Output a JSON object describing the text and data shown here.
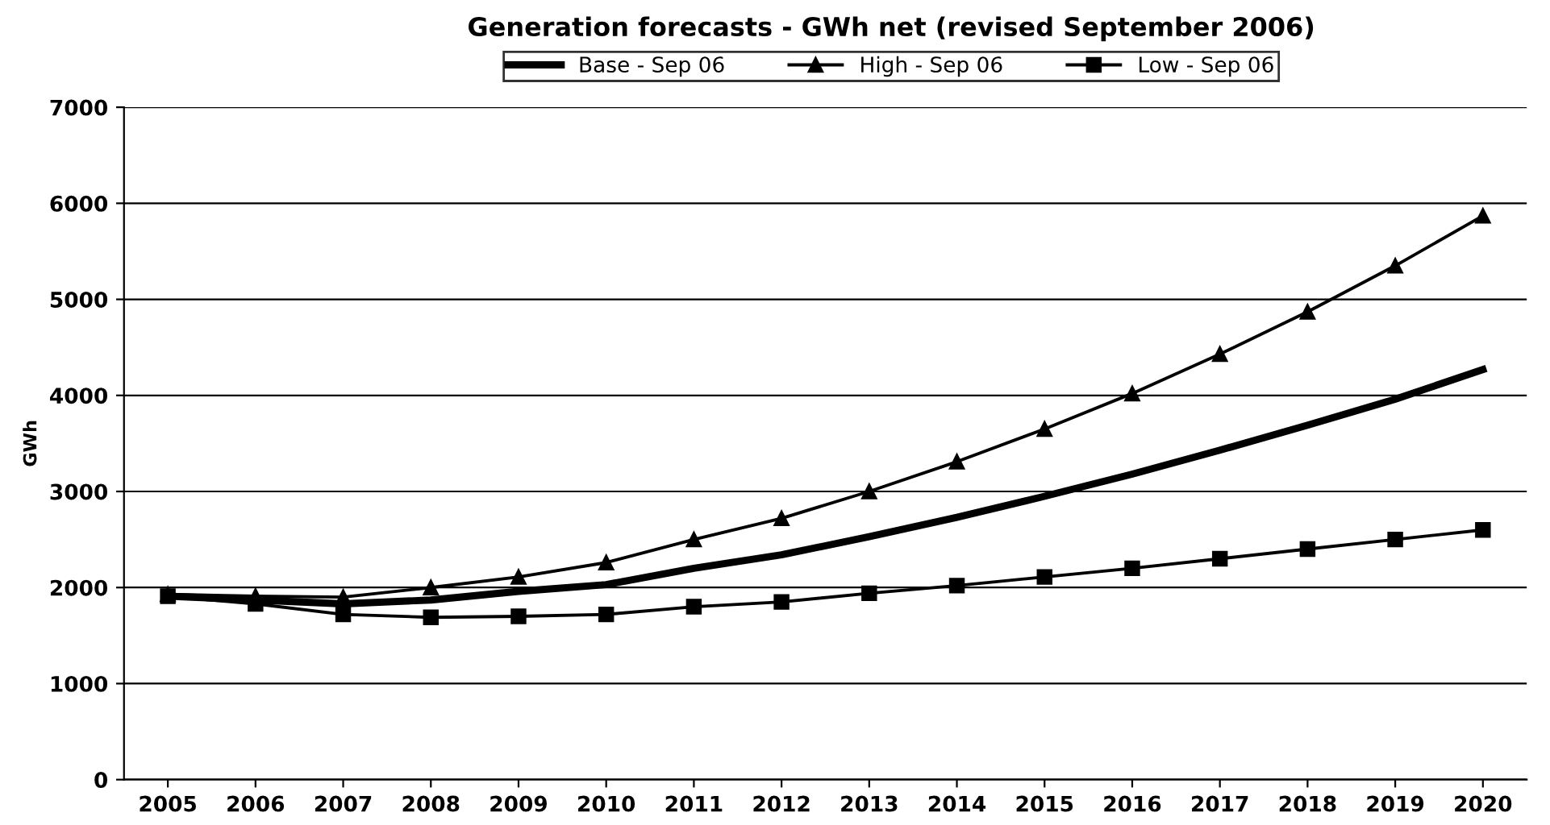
{
  "chart_data": {
    "type": "line",
    "title": "Generation forecasts - GWh net (revised September 2006)",
    "ylabel": "GWh",
    "categories": [
      "2005",
      "2006",
      "2007",
      "2008",
      "2009",
      "2010",
      "2011",
      "2012",
      "2013",
      "2014",
      "2015",
      "2016",
      "2017",
      "2018",
      "2019",
      "2020"
    ],
    "series": [
      {
        "name": "Base - Sep 06",
        "color": "#000000",
        "marker": "none",
        "values": [
          1910,
          1870,
          1830,
          1870,
          1960,
          2030,
          2200,
          2340,
          2530,
          2730,
          2950,
          3180,
          3430,
          3690,
          3960,
          4270
        ]
      },
      {
        "name": "High - Sep 06",
        "color": "#000000",
        "marker": "triangle",
        "values": [
          1930,
          1910,
          1900,
          2000,
          2110,
          2260,
          2500,
          2720,
          3000,
          3310,
          3650,
          4020,
          4430,
          4870,
          5350,
          5870
        ]
      },
      {
        "name": "Low - Sep 06",
        "color": "#000000",
        "marker": "square",
        "values": [
          1910,
          1830,
          1720,
          1690,
          1700,
          1720,
          1800,
          1850,
          1940,
          2020,
          2110,
          2200,
          2300,
          2400,
          2500,
          2600
        ]
      }
    ],
    "ylim": [
      0,
      7000
    ],
    "yticks": [
      0,
      1000,
      2000,
      3000,
      4000,
      5000,
      6000,
      7000
    ],
    "grid": "y",
    "legend": "top"
  }
}
